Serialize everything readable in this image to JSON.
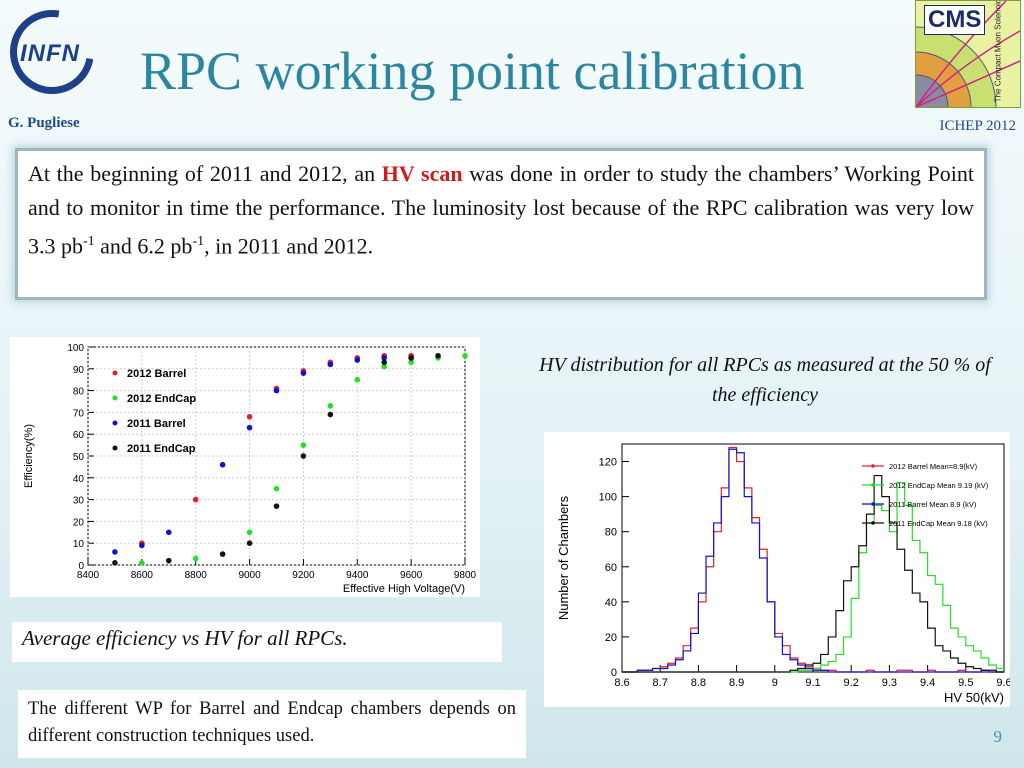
{
  "header": {
    "title": "RPC working point calibration",
    "author": "G. Pugliese",
    "conference": "ICHEP 2012",
    "logo_left_text": "INFN",
    "logo_right_text": "CMS",
    "logo_right_subtext": "The Compact Muon Solenoid"
  },
  "intro": {
    "part1": "At the beginning of 2011 and 2012, an ",
    "highlight": "HV scan",
    "part2": " was done in order to study the chambers’ Working Point and to monitor in time the performance. The luminosity lost because of the RPC calibration was very low 3.3 pb",
    "sup1": "-1",
    "part3": " and 6.2 pb",
    "sup2": "-1",
    "part4": ", in 2011 and 2012."
  },
  "captions": {
    "efficiency": "Average efficiency vs HV for all RPCs.",
    "hv_distribution": "HV distribution for all RPCs as measured at the 50 % of the efficiency"
  },
  "wp_note": "The different WP for Barrel and Endcap chambers depends on different construction techniques used.",
  "page_number": "9",
  "colors": {
    "red": "#e0202a",
    "green": "#22e022",
    "blue": "#1010d0",
    "black": "#111111"
  },
  "chart_data": [
    {
      "type": "scatter",
      "xlabel": "Effective High Voltage(V)",
      "ylabel": "Efficiency(%)",
      "xlim": [
        8400,
        9800
      ],
      "ylim": [
        0,
        100
      ],
      "xticks": [
        "8400",
        "8600",
        "8800",
        "9000",
        "9200",
        "9400",
        "9600",
        "9800"
      ],
      "yticks": [
        "0",
        "10",
        "20",
        "30",
        "40",
        "50",
        "60",
        "70",
        "80",
        "90",
        "100"
      ],
      "legend_position": "top-left",
      "series": [
        {
          "name": "2012 Barrel",
          "color": "red",
          "points": [
            [
              8600,
              10
            ],
            [
              8800,
              30
            ],
            [
              9000,
              68
            ],
            [
              9100,
              81
            ],
            [
              9200,
              89
            ],
            [
              9300,
              93
            ],
            [
              9400,
              95
            ],
            [
              9500,
              96
            ],
            [
              9600,
              96
            ]
          ]
        },
        {
          "name": "2012 EndCap",
          "color": "green",
          "points": [
            [
              8600,
              1
            ],
            [
              8800,
              3
            ],
            [
              9000,
              15
            ],
            [
              9100,
              35
            ],
            [
              9200,
              55
            ],
            [
              9300,
              73
            ],
            [
              9400,
              85
            ],
            [
              9500,
              91
            ],
            [
              9600,
              93
            ],
            [
              9700,
              95
            ],
            [
              9800,
              96
            ]
          ]
        },
        {
          "name": "2011 Barrel",
          "color": "blue",
          "points": [
            [
              8500,
              6
            ],
            [
              8600,
              9
            ],
            [
              8700,
              15
            ],
            [
              8900,
              46
            ],
            [
              9000,
              63
            ],
            [
              9100,
              80
            ],
            [
              9200,
              88
            ],
            [
              9300,
              92
            ],
            [
              9400,
              94
            ],
            [
              9500,
              95
            ],
            [
              9600,
              95
            ]
          ]
        },
        {
          "name": "2011 EndCap",
          "color": "black",
          "points": [
            [
              8500,
              1
            ],
            [
              8700,
              2
            ],
            [
              8900,
              5
            ],
            [
              9000,
              10
            ],
            [
              9100,
              27
            ],
            [
              9200,
              50
            ],
            [
              9300,
              69
            ],
            [
              9500,
              93
            ],
            [
              9600,
              95
            ],
            [
              9700,
              96
            ]
          ]
        }
      ]
    },
    {
      "type": "line",
      "subtype": "histogram",
      "xlabel": "HV 50(kV)",
      "ylabel": "Number of Chambers",
      "xlim": [
        8.6,
        9.6
      ],
      "ylim": [
        0,
        130
      ],
      "xticks": [
        "8.6",
        "8.7",
        "8.8",
        "8.9",
        "9",
        "9.1",
        "9.2",
        "9.3",
        "9.4",
        "9.5",
        "9.6"
      ],
      "yticks": [
        "0",
        "20",
        "40",
        "60",
        "80",
        "100",
        "120"
      ],
      "bin_start": 8.6,
      "bin_width": 0.02,
      "legend_position": "top-right",
      "series": [
        {
          "name": "2012 Barrel Mean=8.9(kV)",
          "color": "red",
          "counts": [
            0,
            0,
            1,
            1,
            2,
            3,
            5,
            8,
            15,
            25,
            40,
            60,
            80,
            105,
            128,
            120,
            105,
            88,
            70,
            40,
            22,
            15,
            8,
            5,
            3,
            2,
            1,
            1,
            0,
            0,
            0,
            0,
            1,
            0,
            0,
            0,
            1,
            1,
            0,
            0,
            1,
            0,
            0,
            0,
            1,
            0,
            0,
            1,
            0,
            0
          ]
        },
        {
          "name": "2012 EndCap Mean 9.19 (kV)",
          "color": "green",
          "counts": [
            0,
            0,
            0,
            0,
            0,
            0,
            0,
            0,
            0,
            0,
            0,
            0,
            0,
            0,
            0,
            0,
            0,
            0,
            0,
            0,
            0,
            0,
            0,
            1,
            1,
            2,
            4,
            6,
            10,
            20,
            42,
            68,
            85,
            95,
            92,
            80,
            108,
            95,
            75,
            68,
            55,
            50,
            38,
            25,
            20,
            15,
            12,
            8,
            4,
            2
          ]
        },
        {
          "name": "2011 Barrel Mean 8.9 (kV)",
          "color": "blue",
          "counts": [
            0,
            0,
            1,
            1,
            2,
            2,
            4,
            7,
            12,
            22,
            45,
            66,
            85,
            100,
            127,
            125,
            100,
            85,
            65,
            40,
            20,
            10,
            7,
            4,
            2,
            1,
            1,
            0,
            0,
            0,
            0,
            0,
            0,
            0,
            0,
            0,
            0,
            0,
            0,
            0,
            0,
            0,
            0,
            0,
            0,
            0,
            0,
            0,
            0,
            0
          ]
        },
        {
          "name": "2011 EndCap Mean 9.18 (kV)",
          "color": "black",
          "counts": [
            0,
            0,
            0,
            0,
            0,
            0,
            0,
            0,
            0,
            0,
            0,
            0,
            0,
            0,
            0,
            0,
            0,
            0,
            0,
            0,
            0,
            0,
            1,
            2,
            4,
            5,
            10,
            20,
            35,
            52,
            60,
            72,
            90,
            112,
            100,
            85,
            70,
            58,
            45,
            40,
            25,
            15,
            12,
            8,
            5,
            3,
            2,
            1,
            1,
            0
          ]
        }
      ]
    }
  ]
}
